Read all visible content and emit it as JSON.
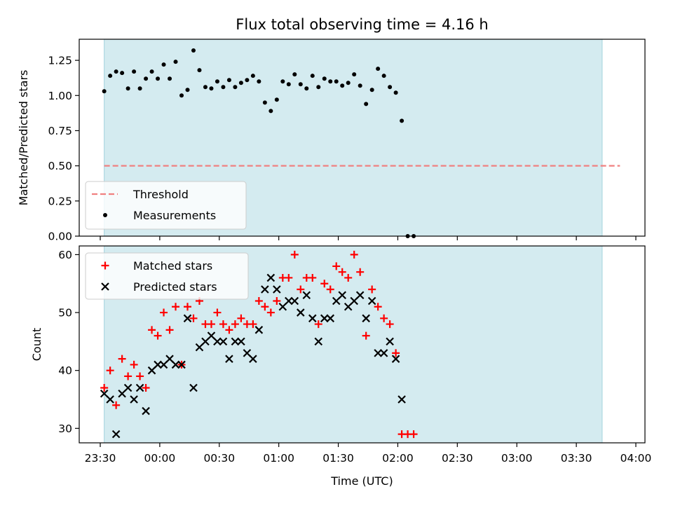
{
  "chart_data": [
    {
      "type": "scatter",
      "title": "Flux total observing time = 4.16 h",
      "xlabel": "",
      "ylabel": "Matched/Predicted stars",
      "ylim": [
        0,
        1.4
      ],
      "yticks": [
        0.0,
        0.25,
        0.5,
        0.75,
        1.0,
        1.25
      ],
      "ytick_labels": [
        "0.00",
        "0.25",
        "0.50",
        "0.75",
        "1.00",
        "1.25"
      ],
      "shaded_span": [
        "23:32",
        "03:43"
      ],
      "legend_position": "lower-left",
      "threshold": {
        "name": "Threshold",
        "value": 0.5,
        "x_start": "23:32",
        "x_end": "03:52",
        "style": "dashed",
        "color": "#f08080"
      },
      "series": [
        {
          "name": "Measurements",
          "color": "#000000",
          "marker": "dot",
          "points": [
            [
              "23:32",
              1.03
            ],
            [
              "23:35",
              1.14
            ],
            [
              "23:38",
              1.17
            ],
            [
              "23:41",
              1.16
            ],
            [
              "23:44",
              1.05
            ],
            [
              "23:47",
              1.17
            ],
            [
              "23:50",
              1.05
            ],
            [
              "23:53",
              1.12
            ],
            [
              "23:56",
              1.17
            ],
            [
              "23:59",
              1.12
            ],
            [
              "00:02",
              1.22
            ],
            [
              "00:05",
              1.12
            ],
            [
              "00:08",
              1.24
            ],
            [
              "00:11",
              1.0
            ],
            [
              "00:14",
              1.04
            ],
            [
              "00:17",
              1.32
            ],
            [
              "00:20",
              1.18
            ],
            [
              "00:23",
              1.06
            ],
            [
              "00:26",
              1.05
            ],
            [
              "00:29",
              1.1
            ],
            [
              "00:32",
              1.06
            ],
            [
              "00:35",
              1.11
            ],
            [
              "00:38",
              1.06
            ],
            [
              "00:41",
              1.09
            ],
            [
              "00:44",
              1.11
            ],
            [
              "00:47",
              1.14
            ],
            [
              "00:50",
              1.1
            ],
            [
              "00:53",
              0.95
            ],
            [
              "00:56",
              0.89
            ],
            [
              "00:59",
              0.97
            ],
            [
              "01:02",
              1.1
            ],
            [
              "01:05",
              1.08
            ],
            [
              "01:08",
              1.15
            ],
            [
              "01:11",
              1.08
            ],
            [
              "01:14",
              1.05
            ],
            [
              "01:17",
              1.14
            ],
            [
              "01:20",
              1.06
            ],
            [
              "01:23",
              1.12
            ],
            [
              "01:26",
              1.1
            ],
            [
              "01:29",
              1.1
            ],
            [
              "01:32",
              1.07
            ],
            [
              "01:35",
              1.09
            ],
            [
              "01:38",
              1.15
            ],
            [
              "01:41",
              1.07
            ],
            [
              "01:44",
              0.94
            ],
            [
              "01:47",
              1.04
            ],
            [
              "01:50",
              1.19
            ],
            [
              "01:53",
              1.14
            ],
            [
              "01:56",
              1.06
            ],
            [
              "01:59",
              1.02
            ],
            [
              "02:02",
              0.82
            ],
            [
              "02:05",
              0.0
            ],
            [
              "02:08",
              0.0
            ]
          ]
        }
      ]
    },
    {
      "type": "scatter",
      "title": "",
      "xlabel": "Time (UTC)",
      "ylabel": "Count",
      "ylim": [
        27.5,
        61.5
      ],
      "yticks": [
        30,
        40,
        50,
        60
      ],
      "ytick_labels": [
        "30",
        "40",
        "50",
        "60"
      ],
      "xticks": [
        "23:30",
        "00:00",
        "00:30",
        "01:00",
        "01:30",
        "02:00",
        "02:30",
        "03:00",
        "03:30",
        "04:00"
      ],
      "xtick_labels": [
        "23:30",
        "00:00",
        "00:30",
        "01:00",
        "01:30",
        "02:00",
        "02:30",
        "03:00",
        "03:30",
        "04:00"
      ],
      "shaded_span": [
        "23:32",
        "03:43"
      ],
      "legend_position": "upper-left",
      "series": [
        {
          "name": "Matched stars",
          "color": "#ff0000",
          "marker": "plus",
          "points": [
            [
              "23:32",
              37
            ],
            [
              "23:35",
              40
            ],
            [
              "23:38",
              34
            ],
            [
              "23:41",
              42
            ],
            [
              "23:44",
              39
            ],
            [
              "23:47",
              41
            ],
            [
              "23:50",
              39
            ],
            [
              "23:53",
              37
            ],
            [
              "23:56",
              47
            ],
            [
              "23:59",
              46
            ],
            [
              "00:02",
              50
            ],
            [
              "00:05",
              47
            ],
            [
              "00:08",
              51
            ],
            [
              "00:11",
              41
            ],
            [
              "00:14",
              51
            ],
            [
              "00:17",
              49
            ],
            [
              "00:20",
              52
            ],
            [
              "00:23",
              48
            ],
            [
              "00:26",
              48
            ],
            [
              "00:29",
              50
            ],
            [
              "00:32",
              48
            ],
            [
              "00:35",
              47
            ],
            [
              "00:38",
              48
            ],
            [
              "00:41",
              49
            ],
            [
              "00:44",
              48
            ],
            [
              "00:47",
              48
            ],
            [
              "00:50",
              52
            ],
            [
              "00:53",
              51
            ],
            [
              "00:56",
              50
            ],
            [
              "00:59",
              52
            ],
            [
              "01:02",
              56
            ],
            [
              "01:05",
              56
            ],
            [
              "01:08",
              60
            ],
            [
              "01:11",
              54
            ],
            [
              "01:14",
              56
            ],
            [
              "01:17",
              56
            ],
            [
              "01:20",
              48
            ],
            [
              "01:23",
              55
            ],
            [
              "01:26",
              54
            ],
            [
              "01:29",
              58
            ],
            [
              "01:32",
              57
            ],
            [
              "01:35",
              56
            ],
            [
              "01:38",
              60
            ],
            [
              "01:41",
              57
            ],
            [
              "01:44",
              46
            ],
            [
              "01:47",
              54
            ],
            [
              "01:50",
              51
            ],
            [
              "01:53",
              49
            ],
            [
              "01:56",
              48
            ],
            [
              "01:59",
              43
            ],
            [
              "02:02",
              29
            ],
            [
              "02:05",
              29
            ],
            [
              "02:08",
              29
            ]
          ]
        },
        {
          "name": "Predicted stars",
          "color": "#000000",
          "marker": "x",
          "points": [
            [
              "23:32",
              36
            ],
            [
              "23:35",
              35
            ],
            [
              "23:38",
              29
            ],
            [
              "23:41",
              36
            ],
            [
              "23:44",
              37
            ],
            [
              "23:47",
              35
            ],
            [
              "23:50",
              37
            ],
            [
              "23:53",
              33
            ],
            [
              "23:56",
              40
            ],
            [
              "23:59",
              41
            ],
            [
              "00:02",
              41
            ],
            [
              "00:05",
              42
            ],
            [
              "00:08",
              41
            ],
            [
              "00:11",
              41
            ],
            [
              "00:14",
              49
            ],
            [
              "00:17",
              37
            ],
            [
              "00:20",
              44
            ],
            [
              "00:23",
              45
            ],
            [
              "00:26",
              46
            ],
            [
              "00:29",
              45
            ],
            [
              "00:32",
              45
            ],
            [
              "00:35",
              42
            ],
            [
              "00:38",
              45
            ],
            [
              "00:41",
              45
            ],
            [
              "00:44",
              43
            ],
            [
              "00:47",
              42
            ],
            [
              "00:50",
              47
            ],
            [
              "00:53",
              54
            ],
            [
              "00:56",
              56
            ],
            [
              "00:59",
              54
            ],
            [
              "01:02",
              51
            ],
            [
              "01:05",
              52
            ],
            [
              "01:08",
              52
            ],
            [
              "01:11",
              50
            ],
            [
              "01:14",
              53
            ],
            [
              "01:17",
              49
            ],
            [
              "01:20",
              45
            ],
            [
              "01:23",
              49
            ],
            [
              "01:26",
              49
            ],
            [
              "01:29",
              52
            ],
            [
              "01:32",
              53
            ],
            [
              "01:35",
              51
            ],
            [
              "01:38",
              52
            ],
            [
              "01:41",
              53
            ],
            [
              "01:44",
              49
            ],
            [
              "01:47",
              52
            ],
            [
              "01:50",
              43
            ],
            [
              "01:53",
              43
            ],
            [
              "01:56",
              45
            ],
            [
              "01:59",
              42
            ],
            [
              "02:02",
              35
            ]
          ]
        }
      ]
    }
  ]
}
